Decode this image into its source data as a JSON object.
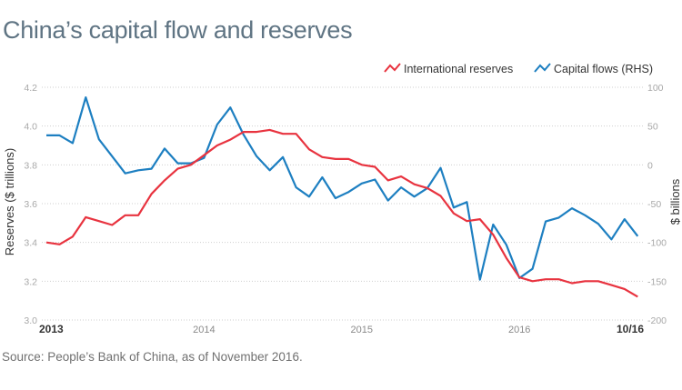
{
  "title": "China’s capital flow and reserves",
  "source": "Source: People’s Bank of China, as of November 2016.",
  "colors": {
    "reserves": "#e8333f",
    "capital_flows": "#1d7fc1",
    "title": "#5f7483"
  },
  "chart_data": {
    "type": "line",
    "title": "China’s capital flow and reserves",
    "xlabel": "",
    "ylabel": "Reserves ($ trillions)",
    "ylabel_right": "$ billions",
    "ylim": [
      3.0,
      4.2
    ],
    "ylim_right": [
      -200,
      100
    ],
    "grid": true,
    "legend_position": "top-right",
    "y_ticks": [
      "4.2",
      "4.0",
      "3.8",
      "3.6",
      "3.4",
      "3.2",
      "3.0"
    ],
    "y_ticks_right": [
      "100",
      "50",
      "0",
      "-50",
      "-100",
      "-150",
      "-200"
    ],
    "x_ticks": [
      {
        "label": "2013",
        "index": 0,
        "bold": true
      },
      {
        "label": "2014",
        "index": 12,
        "bold": false
      },
      {
        "label": "2015",
        "index": 24,
        "bold": false
      },
      {
        "label": "2016",
        "index": 36,
        "bold": false
      },
      {
        "label": "10/16",
        "index": 45,
        "bold": true
      }
    ],
    "x": [
      "2013-01",
      "2013-02",
      "2013-03",
      "2013-04",
      "2013-05",
      "2013-06",
      "2013-07",
      "2013-08",
      "2013-09",
      "2013-10",
      "2013-11",
      "2013-12",
      "2014-01",
      "2014-02",
      "2014-03",
      "2014-04",
      "2014-05",
      "2014-06",
      "2014-07",
      "2014-08",
      "2014-09",
      "2014-10",
      "2014-11",
      "2014-12",
      "2015-01",
      "2015-02",
      "2015-03",
      "2015-04",
      "2015-05",
      "2015-06",
      "2015-07",
      "2015-08",
      "2015-09",
      "2015-10",
      "2015-11",
      "2015-12",
      "2016-01",
      "2016-02",
      "2016-03",
      "2016-04",
      "2016-05",
      "2016-06",
      "2016-07",
      "2016-08",
      "2016-09",
      "2016-10"
    ],
    "series": [
      {
        "name": "International reserves",
        "axis": "left",
        "values": [
          3.4,
          3.39,
          3.43,
          3.53,
          3.51,
          3.49,
          3.54,
          3.54,
          3.65,
          3.72,
          3.78,
          3.8,
          3.85,
          3.9,
          3.93,
          3.97,
          3.97,
          3.98,
          3.96,
          3.96,
          3.88,
          3.84,
          3.83,
          3.83,
          3.8,
          3.79,
          3.72,
          3.74,
          3.7,
          3.68,
          3.64,
          3.55,
          3.51,
          3.52,
          3.44,
          3.32,
          3.22,
          3.2,
          3.21,
          3.21,
          3.19,
          3.2,
          3.2,
          3.18,
          3.16,
          3.12
        ]
      },
      {
        "name": "Capital flows (RHS)",
        "axis": "right",
        "values": [
          38,
          38,
          28,
          87,
          33,
          11,
          -11,
          -7,
          -5,
          21,
          2,
          2,
          9,
          52,
          74,
          39,
          11,
          -7,
          10,
          -29,
          -41,
          -16,
          -43,
          -35,
          -24,
          -19,
          -46,
          -29,
          -41,
          -30,
          -4,
          -55,
          -48,
          -148,
          -77,
          -103,
          -146,
          -134,
          -73,
          -68,
          -56,
          -65,
          -76,
          -96,
          -70,
          -92
        ]
      }
    ]
  }
}
